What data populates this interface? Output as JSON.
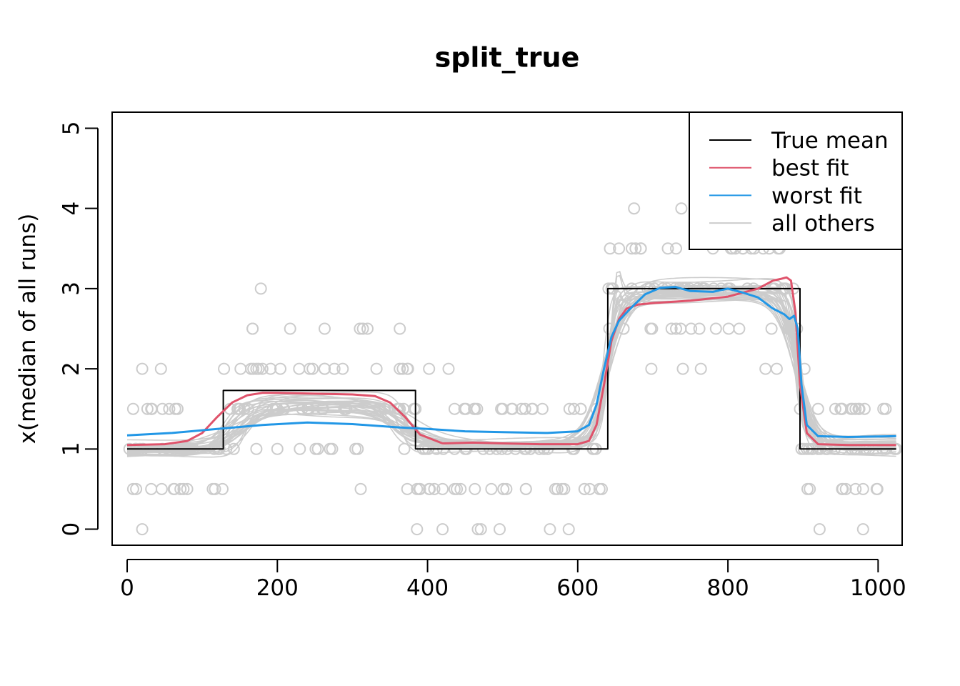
{
  "chart_data": {
    "type": "line",
    "title": "split_true",
    "xlabel": "",
    "ylabel": "x(median of all runs)",
    "xlim": [
      -20,
      1032
    ],
    "ylim": [
      -0.2,
      5.2
    ],
    "xticks": [
      0,
      200,
      400,
      600,
      800,
      1000
    ],
    "yticks": [
      0,
      1,
      2,
      3,
      4,
      5
    ],
    "legend": {
      "position": "top-right",
      "entries": [
        {
          "label": "True mean",
          "color": "#000000"
        },
        {
          "label": "best fit",
          "color": "#DF536B"
        },
        {
          "label": "worst fit",
          "color": "#2297E6"
        },
        {
          "label": "all others",
          "color": "#CCCCCC"
        }
      ]
    },
    "series": [
      {
        "name": "True mean",
        "color": "#000000",
        "step": true,
        "x": [
          0,
          128,
          128,
          384,
          384,
          640,
          640,
          896,
          896,
          1024
        ],
        "y": [
          1,
          1,
          1.73,
          1.73,
          1,
          1,
          3,
          3,
          1,
          1
        ]
      },
      {
        "name": "best fit",
        "color": "#DF536B",
        "x": [
          0,
          50,
          80,
          100,
          120,
          140,
          160,
          180,
          200,
          250,
          300,
          330,
          350,
          370,
          390,
          420,
          460,
          500,
          550,
          600,
          615,
          625,
          635,
          645,
          655,
          665,
          680,
          700,
          750,
          800,
          840,
          860,
          870,
          878,
          884,
          890,
          896,
          905,
          920,
          960,
          1024
        ],
        "y": [
          1.05,
          1.06,
          1.1,
          1.2,
          1.4,
          1.58,
          1.67,
          1.7,
          1.7,
          1.69,
          1.68,
          1.66,
          1.58,
          1.4,
          1.18,
          1.07,
          1.08,
          1.07,
          1.06,
          1.06,
          1.1,
          1.3,
          1.8,
          2.35,
          2.62,
          2.75,
          2.8,
          2.82,
          2.85,
          2.9,
          3.0,
          3.1,
          3.12,
          3.14,
          3.1,
          2.7,
          1.8,
          1.2,
          1.06,
          1.05,
          1.05
        ]
      },
      {
        "name": "worst fit",
        "color": "#2297E6",
        "x": [
          0,
          60,
          120,
          180,
          240,
          300,
          360,
          400,
          450,
          500,
          560,
          600,
          615,
          625,
          635,
          645,
          655,
          670,
          690,
          710,
          730,
          750,
          780,
          800,
          820,
          840,
          860,
          875,
          882,
          888,
          893,
          898,
          905,
          920,
          960,
          1024
        ],
        "y": [
          1.17,
          1.2,
          1.25,
          1.3,
          1.33,
          1.31,
          1.27,
          1.25,
          1.22,
          1.21,
          1.2,
          1.22,
          1.3,
          1.55,
          2.0,
          2.4,
          2.6,
          2.75,
          2.93,
          3.01,
          3.02,
          2.97,
          2.96,
          3.0,
          2.95,
          2.89,
          2.75,
          2.68,
          2.62,
          2.66,
          2.5,
          1.8,
          1.3,
          1.16,
          1.15,
          1.16
        ]
      }
    ],
    "other_runs": {
      "name": "all others",
      "color": "#CCCCCC",
      "count": 30
    },
    "observed_points": {
      "color": "#CCCCCC",
      "marker": "open-circle",
      "count": 330
    }
  }
}
